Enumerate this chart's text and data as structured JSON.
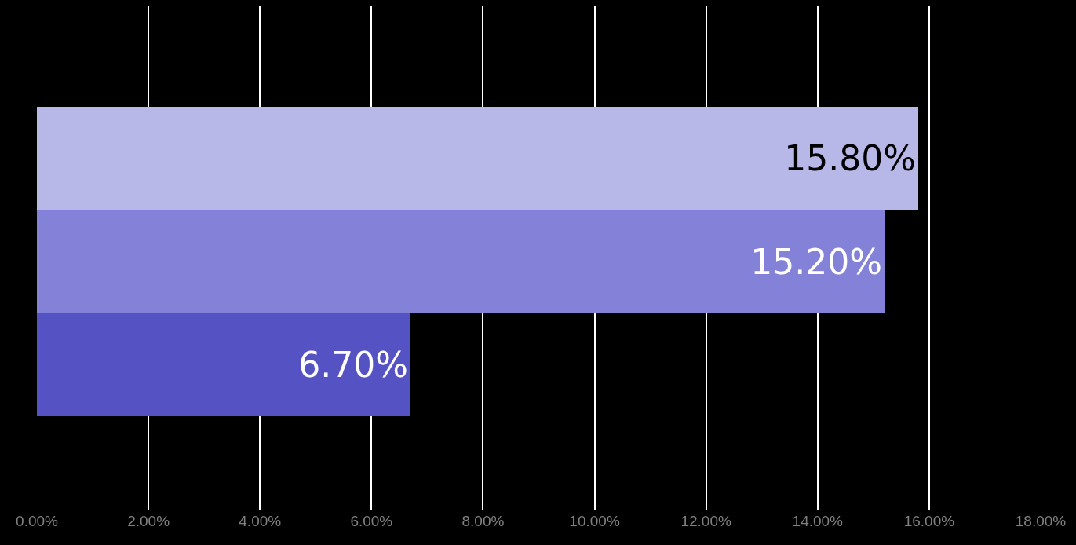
{
  "chart_data": {
    "type": "bar",
    "orientation": "horizontal",
    "categories": [
      null,
      null,
      null
    ],
    "values": [
      15.8,
      15.2,
      6.7
    ],
    "colors": [
      "#b8b8e8",
      "#8482d8",
      "#5552c4"
    ],
    "value_labels": [
      "15.80%",
      "15.20%",
      "6.70%"
    ],
    "xlim": [
      0,
      18
    ],
    "xticks": [
      {
        "value": 0,
        "label": "0.00%"
      },
      {
        "value": 2,
        "label": "2.00%"
      },
      {
        "value": 4,
        "label": "4.00%"
      },
      {
        "value": 6,
        "label": "6.00%"
      },
      {
        "value": 8,
        "label": "8.00%"
      },
      {
        "value": 10,
        "label": "10.00%"
      },
      {
        "value": 12,
        "label": "12.00%"
      },
      {
        "value": 14,
        "label": "14.00%"
      },
      {
        "value": 16,
        "label": "16.00%"
      },
      {
        "value": 18,
        "label": "18.00%"
      }
    ],
    "grid": "x",
    "legend": false,
    "tick_labels": "x"
  }
}
